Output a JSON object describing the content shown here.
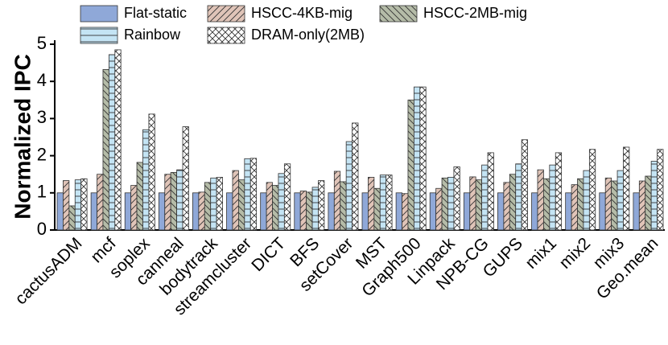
{
  "chart_data": {
    "type": "bar",
    "y_label": "Normalized IPC",
    "categories": [
      "cactusADM",
      "mcf",
      "soplex",
      "canneal",
      "bodytrack",
      "streamcluster",
      "DICT",
      "BFS",
      "setCover",
      "MST",
      "Graph500",
      "Linpack",
      "NPB-CG",
      "GUPS",
      "mix1",
      "mix2",
      "mix3",
      "Geo.mean"
    ],
    "series": [
      {
        "name": "Flat-static",
        "color": "#8fa8d8",
        "hatch": "none",
        "values": [
          1,
          1,
          1,
          1,
          1,
          1,
          1,
          1,
          1,
          1,
          1,
          1,
          1,
          1,
          1,
          1,
          1,
          1
        ]
      },
      {
        "name": "HSCC-4KB-mig",
        "color": "#e0c4b8",
        "hatch": "/",
        "values": [
          1.33,
          1.5,
          1.2,
          1.5,
          1.02,
          1.6,
          1.28,
          1.05,
          1.58,
          1.42,
          0.98,
          1.12,
          1.43,
          1.28,
          1.62,
          1.22,
          1.4,
          1.32
        ]
      },
      {
        "name": "HSCC-2MB-mig",
        "color": "#b5bca8",
        "hatch": "\\",
        "values": [
          0.65,
          4.32,
          1.82,
          1.55,
          1.28,
          1.35,
          1.2,
          1.02,
          1.3,
          1.12,
          3.5,
          1.4,
          1.35,
          1.5,
          1.38,
          1.38,
          1.32,
          1.45
        ]
      },
      {
        "name": "Rainbow",
        "color": "#c4e4f4",
        "hatch": "-",
        "values": [
          1.35,
          4.72,
          2.7,
          1.62,
          1.4,
          1.92,
          1.52,
          1.15,
          2.38,
          1.48,
          3.85,
          1.42,
          1.75,
          1.78,
          1.75,
          1.6,
          1.6,
          1.85
        ]
      },
      {
        "name": "DRAM-only(2MB)",
        "color": "#ffffff",
        "hatch": "x",
        "values": [
          1.38,
          4.85,
          3.12,
          2.78,
          1.42,
          1.93,
          1.78,
          1.33,
          2.88,
          1.48,
          3.85,
          1.7,
          2.08,
          2.43,
          2.08,
          2.17,
          2.23,
          2.17
        ]
      }
    ],
    "ylim": [
      0,
      5
    ],
    "yticks": [
      0,
      1,
      2,
      3,
      4,
      5
    ]
  }
}
